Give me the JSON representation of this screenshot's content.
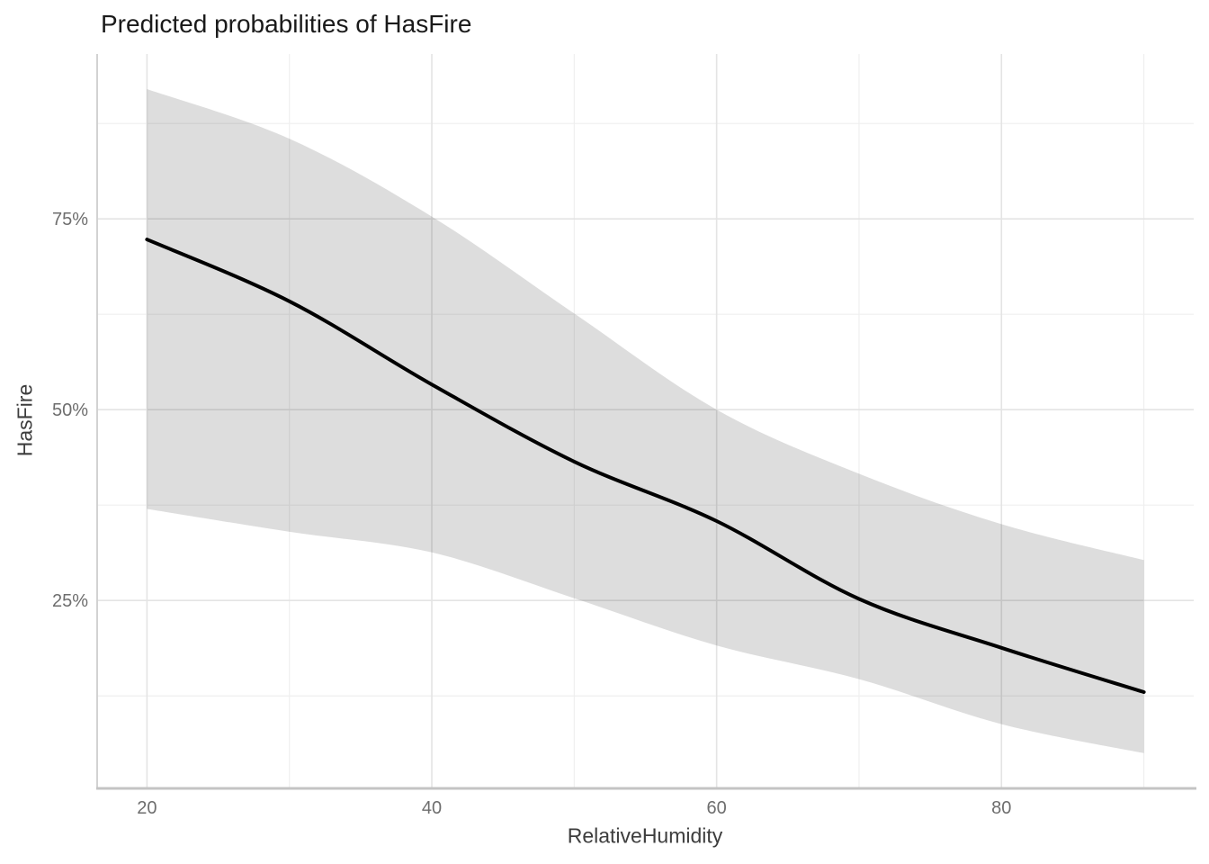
{
  "chart_data": {
    "type": "line",
    "title": "Predicted probabilities of HasFire",
    "xlabel": "RelativeHumidity",
    "ylabel": "HasFire",
    "y_unit": "%",
    "xlim": [
      16.5,
      93.5
    ],
    "ylim": [
      0.5,
      96.6
    ],
    "grid": "on",
    "legend": "none",
    "x_major_ticks": [
      20,
      40,
      60,
      80
    ],
    "x_tick_labels": [
      "20",
      "40",
      "60",
      "80"
    ],
    "x_minor_gridlines": [
      30,
      50,
      70,
      90
    ],
    "y_major_ticks": [
      25,
      50,
      75
    ],
    "y_tick_labels": [
      "25%",
      "50%",
      "75%"
    ],
    "y_minor_gridlines": [
      12.5,
      37.5,
      62.5,
      87.5
    ],
    "x": [
      20,
      30,
      40,
      50,
      60,
      70,
      80,
      90
    ],
    "series": [
      {
        "name": "predicted-probability",
        "values": [
          72.3,
          64.2,
          53.3,
          43.2,
          35.4,
          25.2,
          18.8,
          13.0
        ]
      }
    ],
    "ribbon": {
      "name": "confidence-interval",
      "upper": [
        92.0,
        85.5,
        75.3,
        62.6,
        50.0,
        41.6,
        35.0,
        30.3
      ],
      "lower": [
        37.0,
        34.0,
        31.3,
        25.3,
        19.1,
        14.7,
        8.8,
        5.0
      ]
    },
    "colors": {
      "line": "#000000",
      "ribbon_fill": "rgba(0,0,0,0.135)",
      "grid_major": "#e4e4e4",
      "grid_minor": "#efefef",
      "axis_line_bottom": "#c4c4c4",
      "axis_line_left": "#d2d2d2",
      "tick_label": "#6e6e6e",
      "axis_title": "#3d3d3d",
      "title": "#1a1a1a",
      "background": "#ffffff"
    }
  }
}
